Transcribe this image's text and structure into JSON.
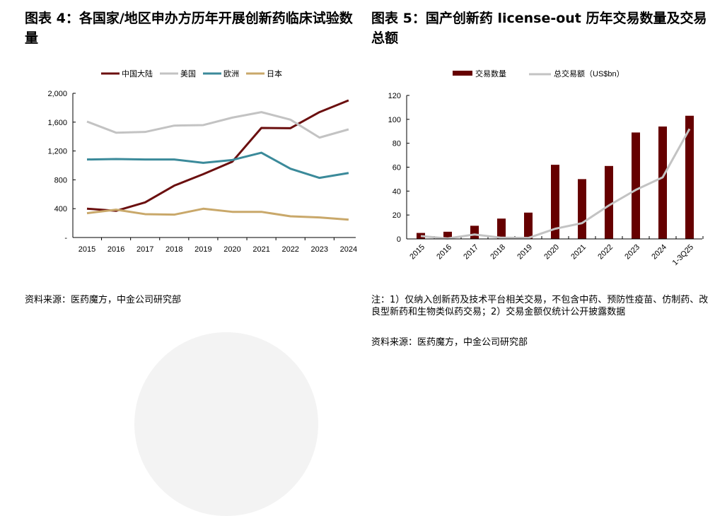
{
  "chart_data": [
    {
      "type": "line",
      "title": "图表 4：各国家/地区申办方历年开展创新药临床试验数量",
      "categories": [
        "2015",
        "2016",
        "2017",
        "2018",
        "2019",
        "2020",
        "2021",
        "2022",
        "2023",
        "2024"
      ],
      "ylim": [
        0,
        2000
      ],
      "yticks": [
        "-",
        "400",
        "800",
        "1,200",
        "1,600",
        "2,000"
      ],
      "ytick_values": [
        0,
        400,
        800,
        1200,
        1600,
        2000
      ],
      "legend_position": "top",
      "grid": false,
      "series": [
        {
          "name": "中国大陆",
          "color": "#6b0f0f",
          "values": [
            400,
            370,
            487,
            719,
            879,
            1052,
            1520,
            1516,
            1739,
            1902
          ]
        },
        {
          "name": "美国",
          "color": "#c3c3c3",
          "values": [
            1608,
            1454,
            1464,
            1552,
            1559,
            1663,
            1739,
            1634,
            1386,
            1500
          ]
        },
        {
          "name": "欧洲",
          "color": "#3b8a9a",
          "values": [
            1082,
            1088,
            1082,
            1082,
            1036,
            1075,
            1176,
            954,
            827,
            895
          ]
        },
        {
          "name": "日本",
          "color": "#c9a86a",
          "values": [
            337,
            386,
            324,
            317,
            399,
            356,
            356,
            294,
            278,
            248
          ]
        }
      ],
      "source": "资料来源：医药魔方，中金公司研究部"
    },
    {
      "type": "bar",
      "title": "图表 5：国产创新药 license-out 历年交易数量及交易总额",
      "categories": [
        "2015",
        "2016",
        "2017",
        "2018",
        "2019",
        "2020",
        "2021",
        "2022",
        "2023",
        "2024",
        "1-3Q25"
      ],
      "ylim": [
        0,
        120
      ],
      "yticks": [
        "0",
        "20",
        "40",
        "60",
        "80",
        "100",
        "120"
      ],
      "ytick_values": [
        0,
        20,
        40,
        60,
        80,
        100,
        120
      ],
      "legend_position": "top",
      "grid": false,
      "series": [
        {
          "name": "交易数量",
          "type": "bar",
          "color": "#660000",
          "values": [
            5,
            6,
            11,
            17,
            22,
            62,
            50,
            61,
            89,
            94,
            103
          ]
        },
        {
          "name": "总交易额（US$bn）",
          "type": "line",
          "color": "#c3c3c3",
          "values": [
            2.4,
            0.4,
            3.7,
            1,
            0.8,
            8.5,
            13.2,
            28,
            41,
            51.5,
            92
          ]
        }
      ],
      "note": "注：1）仅纳入创新药及技术平台相关交易，不包含中药、预防性疫苗、仿制药、改良型新药和生物类似药交易；2）交易金额仅统计公开披露数据",
      "source": "资料来源：医药魔方，中金公司研究部"
    }
  ]
}
